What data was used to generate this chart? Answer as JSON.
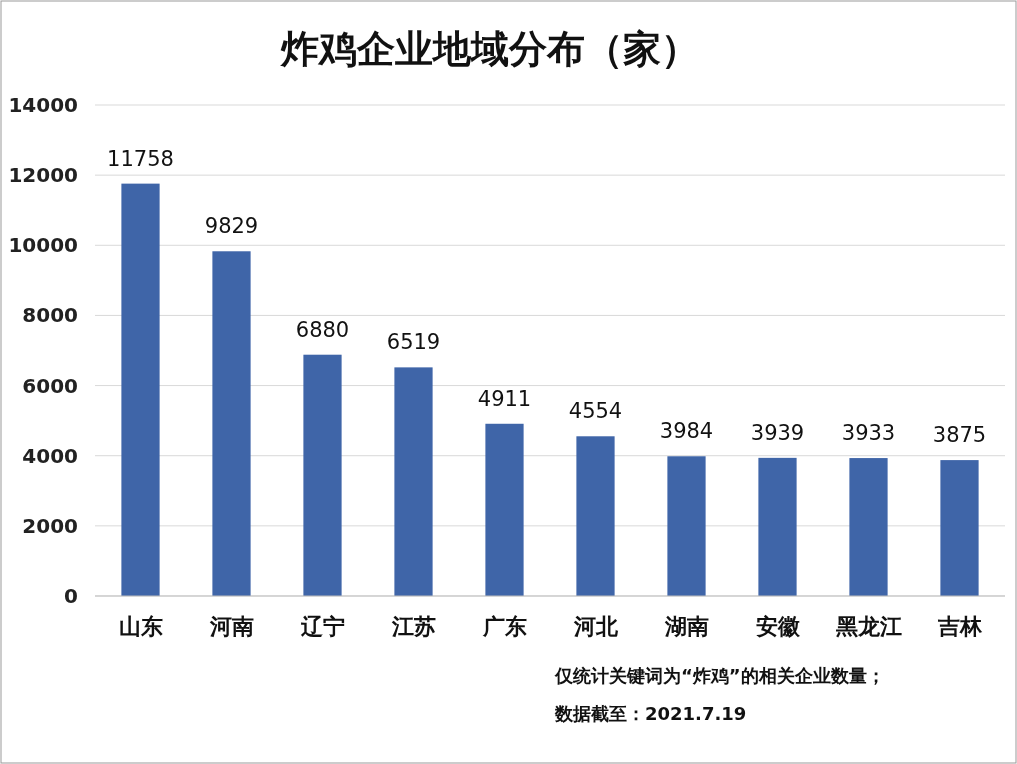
{
  "chart_data": {
    "type": "bar",
    "title": "炸鸡企业地域分布（家）",
    "categories": [
      "山东",
      "河南",
      "辽宁",
      "江苏",
      "广东",
      "河北",
      "湖南",
      "安徽",
      "黑龙江",
      "吉林"
    ],
    "values": [
      11758,
      9829,
      6880,
      6519,
      4911,
      4554,
      3984,
      3939,
      3933,
      3875
    ],
    "color": "#3f65a8",
    "ylim": [
      0,
      14000
    ],
    "yticks": [
      0,
      2000,
      4000,
      6000,
      8000,
      10000,
      12000,
      14000
    ],
    "grid": "y",
    "data_labels": true,
    "annotations": [
      "仅统计关键词为“炸鸡”的相关企业数量；",
      "数据截至：2021.7.19"
    ]
  }
}
